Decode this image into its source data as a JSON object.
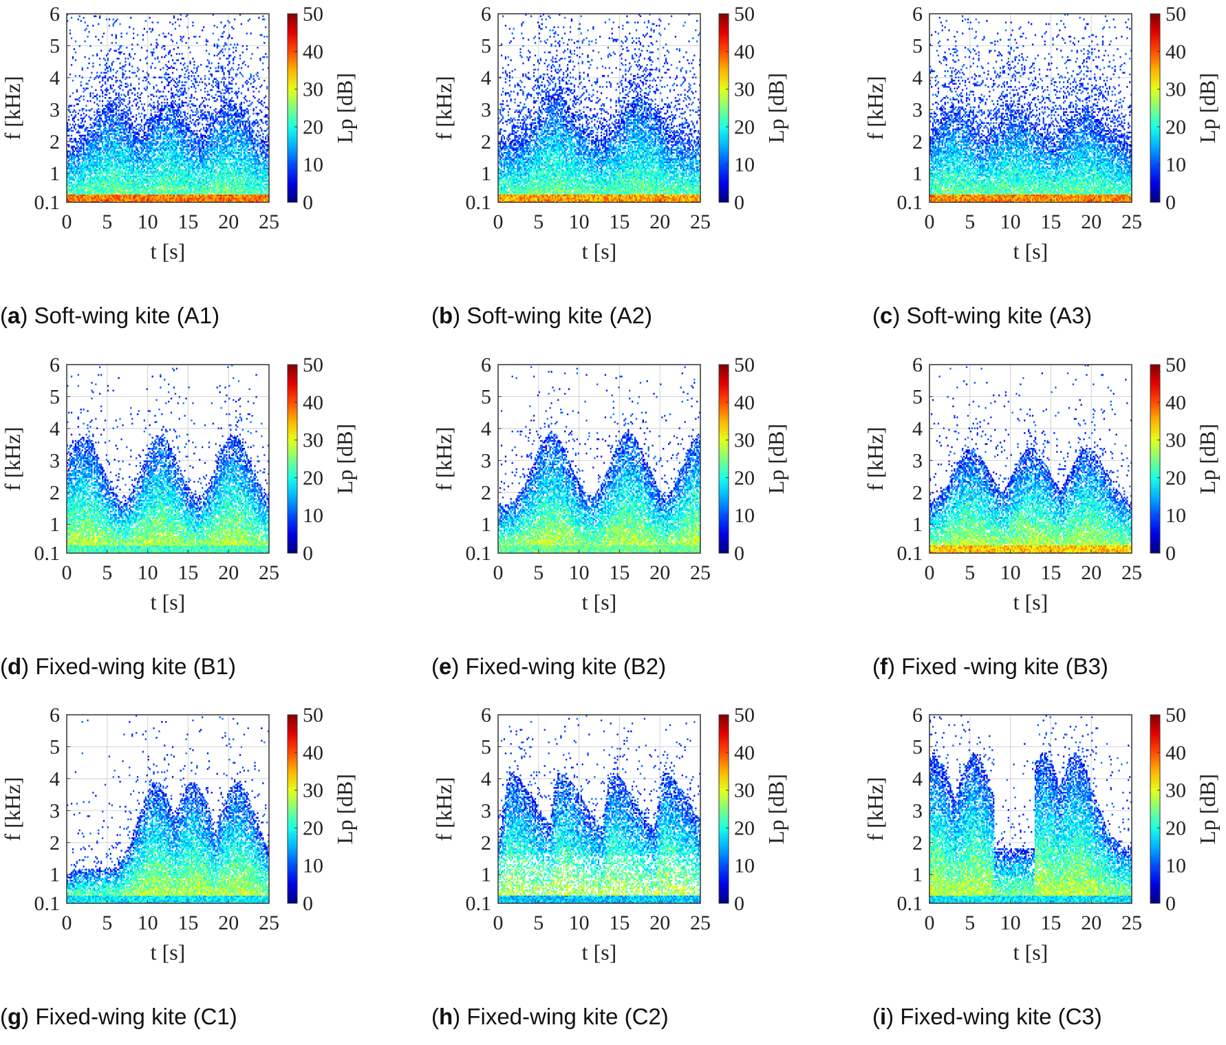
{
  "chart_data": [
    {
      "type": "heatmap",
      "id": "a",
      "caption_letter": "a",
      "caption_text": "Soft-wing kite (A1)",
      "title": "",
      "xlabel": "t [s]",
      "ylabel": "f [kHz]",
      "colorbar_label": "Lp [dB]",
      "xlim": [
        0,
        25
      ],
      "ylim": [
        0.1,
        6
      ],
      "clim": [
        0,
        50
      ],
      "xticks": [
        "0",
        "5",
        "10",
        "15",
        "20",
        "25"
      ],
      "yticks": [
        "0.1",
        "1",
        "2",
        "3",
        "4",
        "5",
        "6"
      ],
      "cticks": [
        "0",
        "10",
        "20",
        "30",
        "40",
        "50"
      ],
      "grid": true,
      "pattern": "broadband",
      "peaks_t": [
        5.5,
        12.5,
        20
      ],
      "peak_f": 3.2,
      "base_f": 1.8,
      "low_band_level": 38
    },
    {
      "type": "heatmap",
      "id": "b",
      "caption_letter": "b",
      "caption_text": "Soft-wing kite (A2)",
      "title": "",
      "xlabel": "t [s]",
      "ylabel": "f [kHz]",
      "colorbar_label": "Lp [dB]",
      "xlim": [
        0,
        25
      ],
      "ylim": [
        0.1,
        6
      ],
      "clim": [
        0,
        50
      ],
      "xticks": [
        "0",
        "5",
        "10",
        "15",
        "20",
        "25"
      ],
      "yticks": [
        "0.1",
        "1",
        "2",
        "3",
        "4",
        "5",
        "6"
      ],
      "cticks": [
        "0",
        "10",
        "20",
        "30",
        "40",
        "50"
      ],
      "grid": true,
      "pattern": "broadband",
      "peaks_t": [
        7,
        17.5
      ],
      "peak_f": 3.5,
      "base_f": 2.0,
      "low_band_level": 36
    },
    {
      "type": "heatmap",
      "id": "c",
      "caption_letter": "c",
      "caption_text": "Soft-wing kite (A3)",
      "title": "",
      "xlabel": "t [s]",
      "ylabel": "f [kHz]",
      "colorbar_label": "Lp [dB]",
      "xlim": [
        0,
        25
      ],
      "ylim": [
        0.1,
        6
      ],
      "clim": [
        0,
        50
      ],
      "xticks": [
        "0",
        "5",
        "10",
        "15",
        "20",
        "25"
      ],
      "yticks": [
        "0.1",
        "1",
        "2",
        "3",
        "4",
        "5",
        "6"
      ],
      "cticks": [
        "0",
        "10",
        "20",
        "30",
        "40",
        "50"
      ],
      "grid": true,
      "pattern": "broadband",
      "peaks_t": [
        3,
        10.5,
        19
      ],
      "peak_f": 3.0,
      "base_f": 1.9,
      "low_band_level": 37
    },
    {
      "type": "heatmap",
      "id": "d",
      "caption_letter": "d",
      "caption_text": "Fixed-wing kite (B1)",
      "title": "",
      "xlabel": "t [s]",
      "ylabel": "f [kHz]",
      "colorbar_label": "Lp [dB]",
      "xlim": [
        0,
        25
      ],
      "ylim": [
        0.1,
        6
      ],
      "clim": [
        0,
        50
      ],
      "xticks": [
        "0",
        "5",
        "10",
        "15",
        "20",
        "25"
      ],
      "yticks": [
        "0.1",
        "1",
        "2",
        "3",
        "4",
        "5",
        "6"
      ],
      "cticks": [
        "0",
        "10",
        "20",
        "30",
        "40",
        "50"
      ],
      "grid": true,
      "pattern": "arches",
      "peaks_t": [
        2,
        11.5,
        20.5
      ],
      "peak_f": 3.8,
      "base_f": 1.5,
      "low_band_level": 22
    },
    {
      "type": "heatmap",
      "id": "e",
      "caption_letter": "e",
      "caption_text": "Fixed-wing kite (B2)",
      "title": "",
      "xlabel": "t [s]",
      "ylabel": "f [kHz]",
      "colorbar_label": "Lp [dB]",
      "xlim": [
        0,
        25
      ],
      "ylim": [
        0.1,
        6
      ],
      "clim": [
        0,
        50
      ],
      "xticks": [
        "0",
        "5",
        "10",
        "15",
        "20",
        "25"
      ],
      "yticks": [
        "0.1",
        "1",
        "2",
        "3",
        "4",
        "5",
        "6"
      ],
      "cticks": [
        "0",
        "10",
        "20",
        "30",
        "40",
        "50"
      ],
      "grid": true,
      "pattern": "arches",
      "peaks_t": [
        6.5,
        16,
        25
      ],
      "peak_f": 3.9,
      "base_f": 1.6,
      "low_band_level": 24
    },
    {
      "type": "heatmap",
      "id": "f",
      "caption_letter": "f",
      "caption_text": "Fixed -wing kite (B3)",
      "title": "",
      "xlabel": "t [s]",
      "ylabel": "f [kHz]",
      "colorbar_label": "Lp [dB]",
      "xlim": [
        0,
        25
      ],
      "ylim": [
        0.1,
        6
      ],
      "clim": [
        0,
        50
      ],
      "xticks": [
        "0",
        "5",
        "10",
        "15",
        "20",
        "25"
      ],
      "yticks": [
        "0.1",
        "1",
        "2",
        "3",
        "4",
        "5",
        "6"
      ],
      "cticks": [
        "0",
        "10",
        "20",
        "30",
        "40",
        "50"
      ],
      "grid": true,
      "pattern": "arches",
      "peaks_t": [
        5,
        12.5,
        19.5
      ],
      "peak_f": 3.4,
      "base_f": 1.6,
      "low_band_level": 34
    },
    {
      "type": "heatmap",
      "id": "g",
      "caption_letter": "g",
      "caption_text": "Fixed-wing kite (C1)",
      "title": "",
      "xlabel": "t [s]",
      "ylabel": "f [kHz]",
      "colorbar_label": "Lp [dB]",
      "xlim": [
        0,
        25
      ],
      "ylim": [
        0.1,
        6
      ],
      "clim": [
        0,
        50
      ],
      "xticks": [
        "0",
        "5",
        "10",
        "15",
        "20",
        "25"
      ],
      "yticks": [
        "0.1",
        "1",
        "2",
        "3",
        "4",
        "5",
        "6"
      ],
      "cticks": [
        "0",
        "10",
        "20",
        "30",
        "40",
        "50"
      ],
      "grid": true,
      "pattern": "rising",
      "peaks_t": [
        11,
        15.5,
        21
      ],
      "peak_f": 3.9,
      "base_f": 1.2,
      "low_band_level": 18
    },
    {
      "type": "heatmap",
      "id": "h",
      "caption_letter": "h",
      "caption_text": "Fixed-wing kite (C2)",
      "title": "",
      "xlabel": "t [s]",
      "ylabel": "f [kHz]",
      "colorbar_label": "Lp [dB]",
      "xlim": [
        0,
        25
      ],
      "ylim": [
        0.1,
        6
      ],
      "clim": [
        0,
        50
      ],
      "xticks": [
        "0",
        "5",
        "10",
        "15",
        "20",
        "25"
      ],
      "yticks": [
        "0.1",
        "1",
        "2",
        "3",
        "4",
        "5",
        "6"
      ],
      "cticks": [
        "0",
        "10",
        "20",
        "30",
        "40",
        "50"
      ],
      "grid": true,
      "pattern": "sawtooth",
      "peaks_t": [
        1.5,
        7.5,
        14,
        20.5
      ],
      "peak_f": 4.2,
      "base_f": 2.1,
      "low_band_level": 16
    },
    {
      "type": "heatmap",
      "id": "i",
      "caption_letter": "i",
      "caption_text": "Fixed-wing kite (C3)",
      "title": "",
      "xlabel": "t [s]",
      "ylabel": "f [kHz]",
      "colorbar_label": "Lp [dB]",
      "xlim": [
        0,
        25
      ],
      "ylim": [
        0.1,
        6
      ],
      "clim": [
        0,
        50
      ],
      "xticks": [
        "0",
        "5",
        "10",
        "15",
        "20",
        "25"
      ],
      "yticks": [
        "0.1",
        "1",
        "2",
        "3",
        "4",
        "5",
        "6"
      ],
      "cticks": [
        "0",
        "10",
        "20",
        "30",
        "40",
        "50"
      ],
      "grid": true,
      "pattern": "decay",
      "peaks_t": [
        0.5,
        5.5,
        14,
        18
      ],
      "peak_f": 4.8,
      "base_f": 1.8,
      "low_band_level": 18
    }
  ]
}
